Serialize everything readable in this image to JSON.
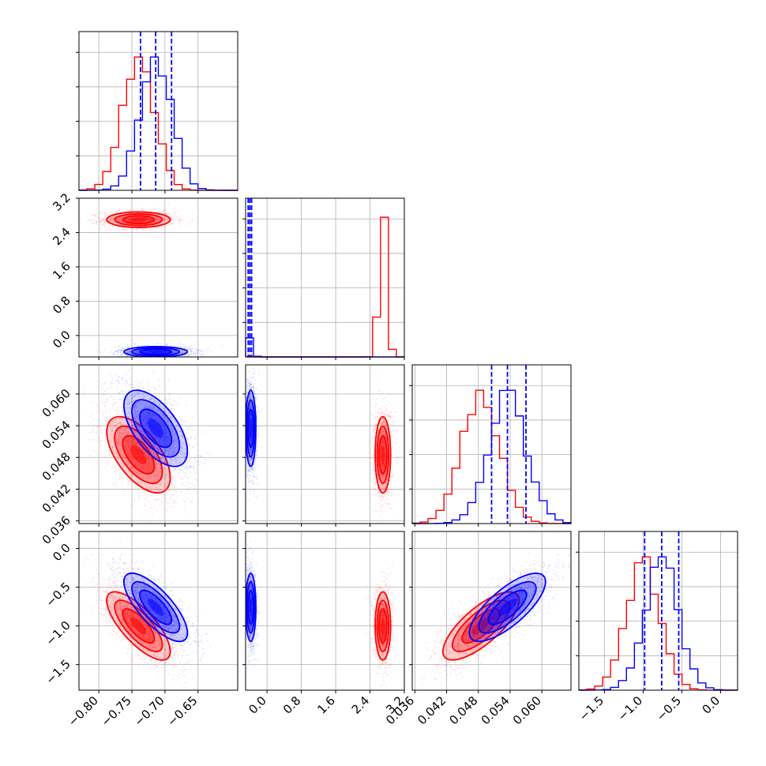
{
  "chart_data": {
    "type": "corner",
    "colors": {
      "blue": "#0000ff",
      "red": "#ff0000",
      "grid": "#b0b0b0"
    },
    "grid": true,
    "parameters": [
      {
        "range": [
          -0.83,
          -0.59
        ],
        "ticks": [
          -0.8,
          -0.75,
          -0.7,
          -0.65
        ],
        "tick_labels": [
          "−0.80",
          "−0.75",
          "−0.70",
          "−0.65"
        ]
      },
      {
        "range": [
          -0.5,
          3.2
        ],
        "ticks": [
          0.0,
          0.8,
          1.6,
          2.4,
          3.2
        ],
        "tick_labels": [
          "0.0",
          "0.8",
          "1.6",
          "2.4",
          "3.2"
        ]
      },
      {
        "range": [
          0.0355,
          0.0655
        ],
        "ticks": [
          0.036,
          0.042,
          0.048,
          0.054,
          0.06
        ],
        "tick_labels": [
          "0.036",
          "0.042",
          "0.048",
          "0.054",
          "0.060"
        ]
      },
      {
        "range": [
          -1.83,
          0.22
        ],
        "ticks": [
          -1.5,
          -1.0,
          -0.5,
          0.0
        ],
        "tick_labels": [
          "−1.5",
          "−1.0",
          "−0.5",
          "0.0"
        ]
      }
    ],
    "series": [
      {
        "color": "blue",
        "mean": [
          -0.714,
          -0.38,
          0.0535,
          -0.76
        ],
        "std": [
          0.024,
          0.06,
          0.0036,
          0.22
        ],
        "quantiles": [
          [
            -0.737,
            -0.714,
            -0.69
          ],
          [
            -0.44,
            -0.4,
            -0.36
          ],
          [
            0.0505,
            0.0535,
            0.057
          ],
          [
            -0.98,
            -0.76,
            -0.54
          ]
        ]
      },
      {
        "color": "red",
        "mean": [
          -0.74,
          2.7,
          0.0485,
          -1.0
        ],
        "std": [
          0.024,
          0.09,
          0.0036,
          0.22
        ]
      }
    ],
    "correlations": [
      {
        "pair": [
          0,
          2
        ],
        "value": -0.6
      },
      {
        "pair": [
          0,
          3
        ],
        "value": -0.75
      },
      {
        "pair": [
          2,
          3
        ],
        "value": 0.75
      }
    ]
  }
}
